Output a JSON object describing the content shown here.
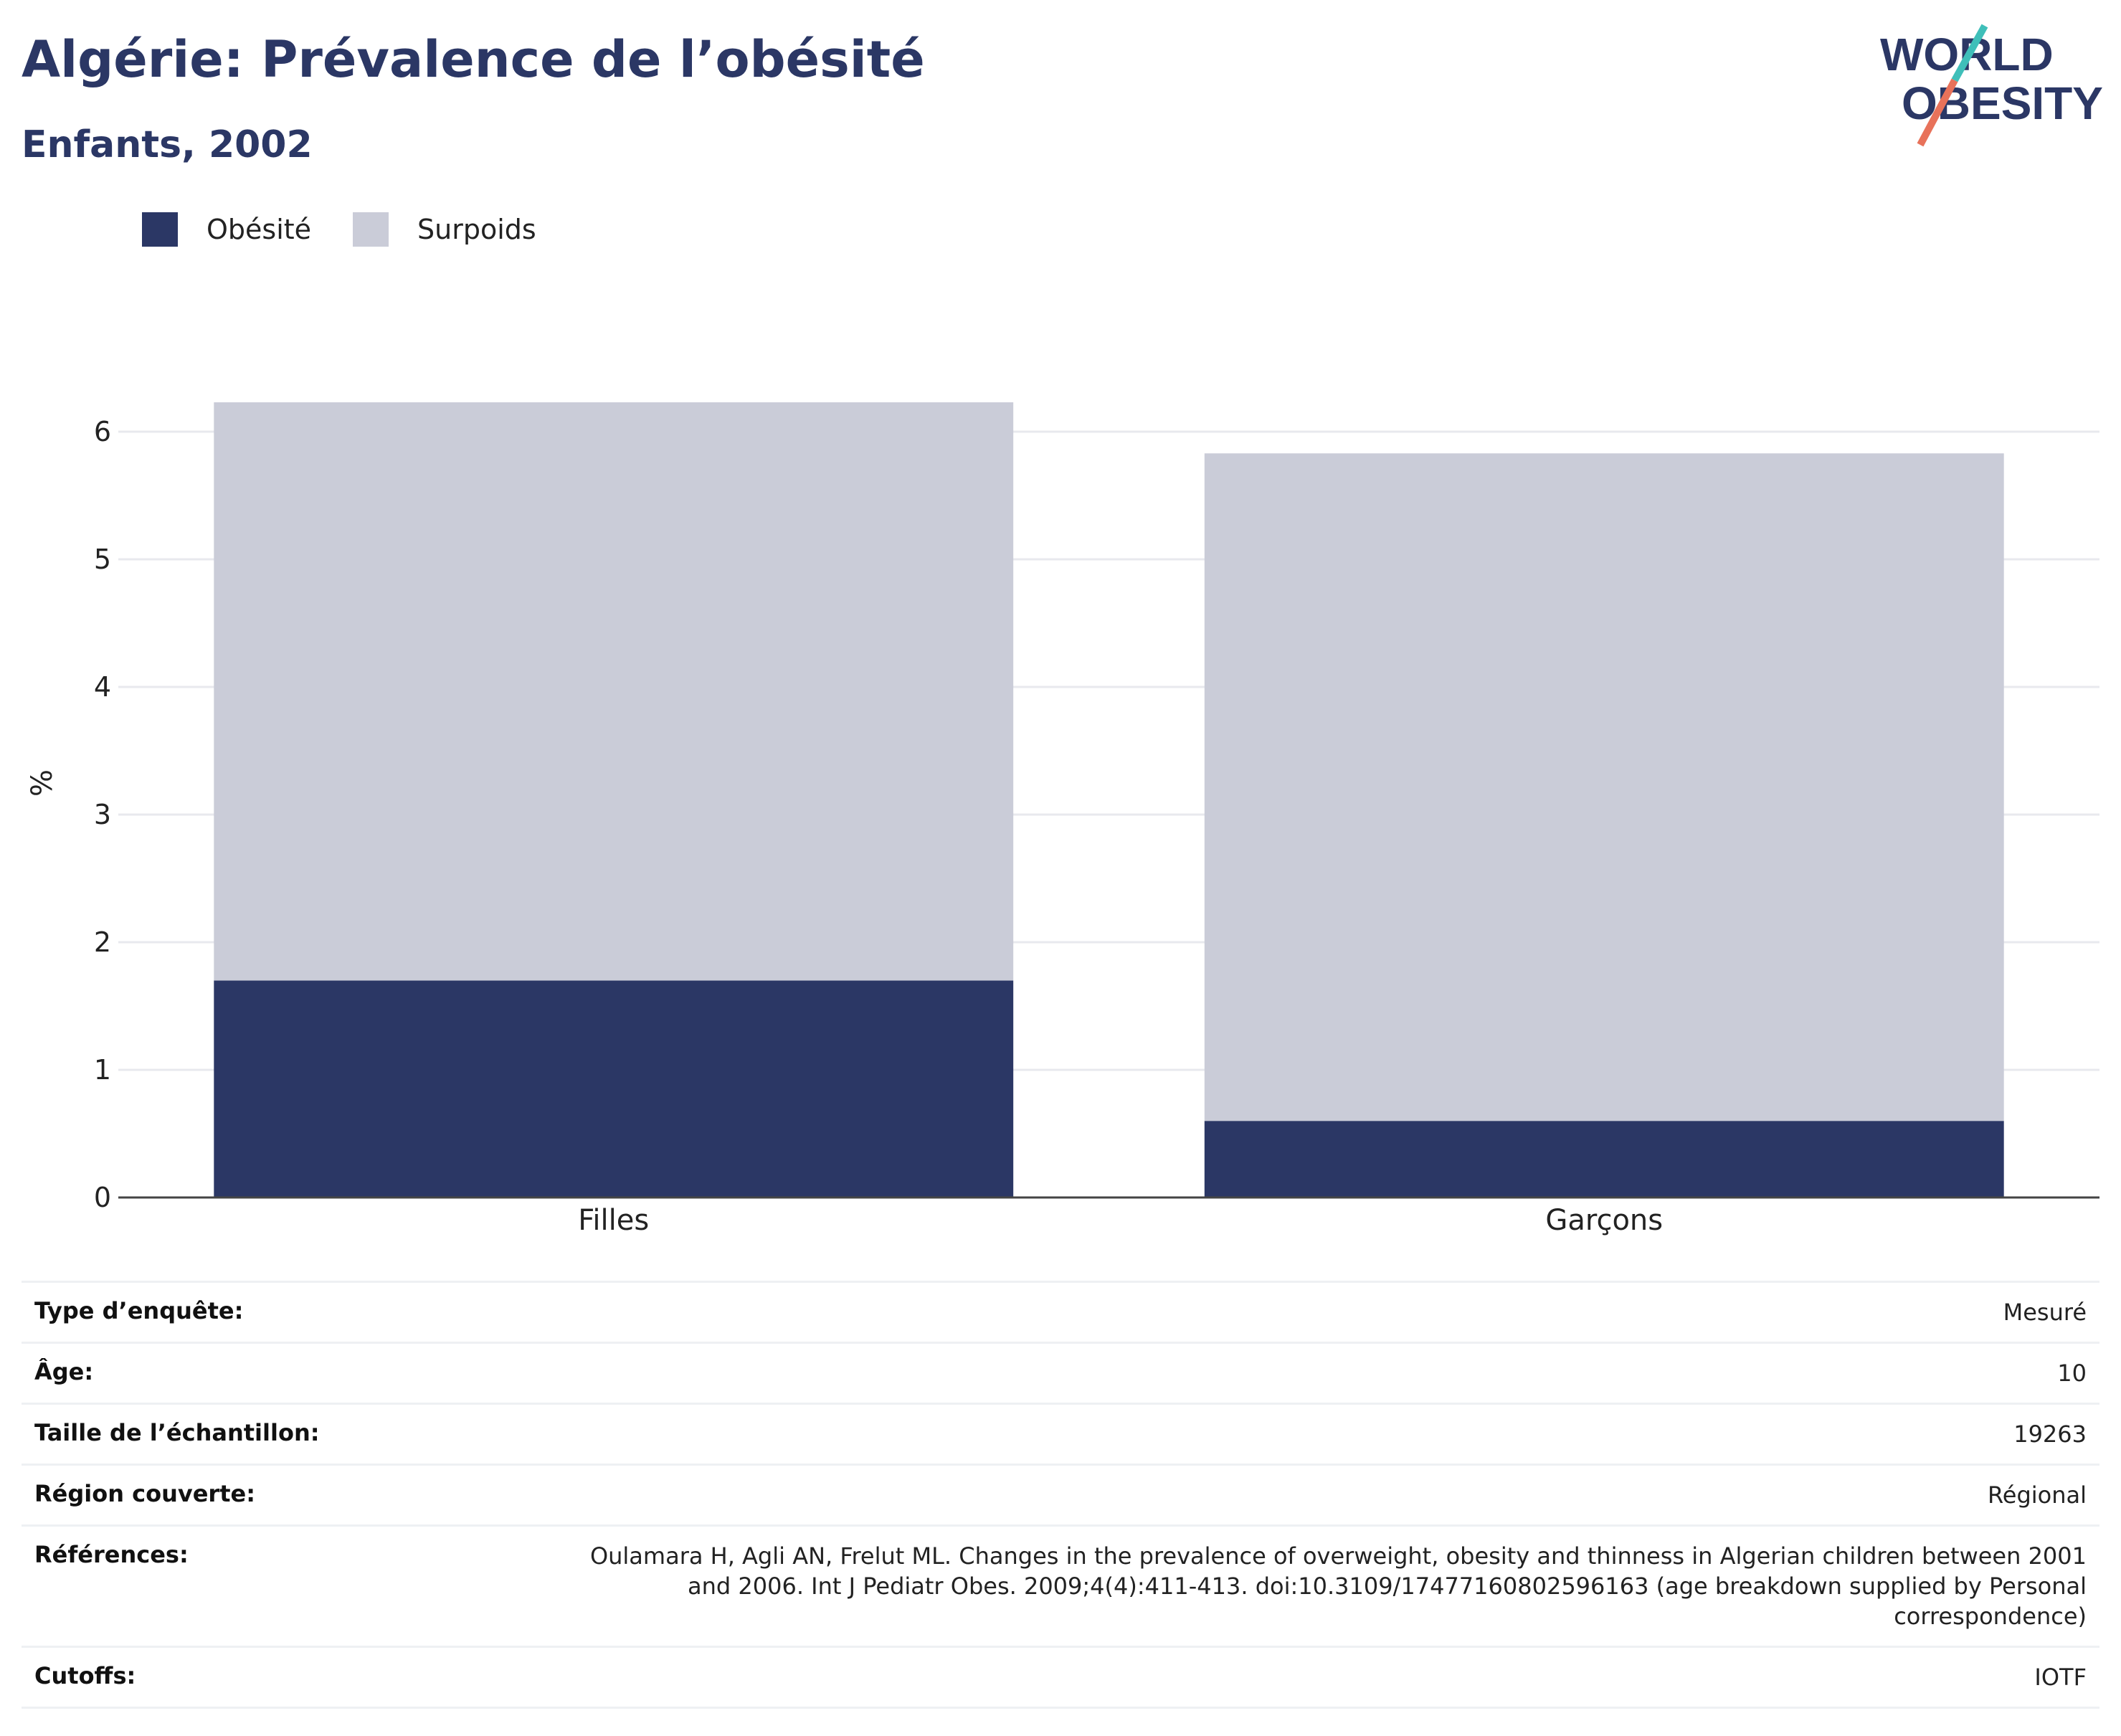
{
  "header": {
    "title": "Algérie: Prévalence de l’obésité",
    "subtitle": "Enfants, 2002"
  },
  "logo": {
    "line1": "WORLD",
    "line2": "OBESITY",
    "colors": {
      "text": "#2b3765",
      "accent_teal": "#3fbfb9",
      "accent_coral": "#e8725a"
    }
  },
  "legend": [
    {
      "label": "Obésité",
      "color": "#2b3765"
    },
    {
      "label": "Surpoids",
      "color": "#caccd8"
    }
  ],
  "chart_data": {
    "type": "bar",
    "stacked": true,
    "categories": [
      "Filles",
      "Garçons"
    ],
    "series": [
      {
        "name": "Obésité",
        "values": [
          1.7,
          0.6
        ],
        "color": "#2b3765"
      },
      {
        "name": "Surpoids",
        "values": [
          4.53,
          5.23
        ],
        "color": "#caccd8"
      }
    ],
    "ylabel": "%",
    "ylim": [
      0,
      6.3
    ],
    "yticks": [
      0,
      1,
      2,
      3,
      4,
      5,
      6
    ],
    "grid": true,
    "legend_position": "top-left"
  },
  "info": [
    {
      "key": "Type d’enquête:",
      "value": "Mesuré"
    },
    {
      "key": "Âge:",
      "value": "10"
    },
    {
      "key": "Taille de l’échantillon:",
      "value": "19263"
    },
    {
      "key": "Région couverte:",
      "value": "Régional"
    },
    {
      "key": "Références:",
      "value": "Oulamara H, Agli AN, Frelut ML. Changes in the prevalence of overweight, obesity and thinness in Algerian children between 2001 and 2006. Int J Pediatr Obes. 2009;4(4):411-413. doi:10.3109/17477160802596163 (age breakdown supplied by Personal correspondence)"
    },
    {
      "key": "Cutoffs:",
      "value": "IOTF"
    }
  ]
}
